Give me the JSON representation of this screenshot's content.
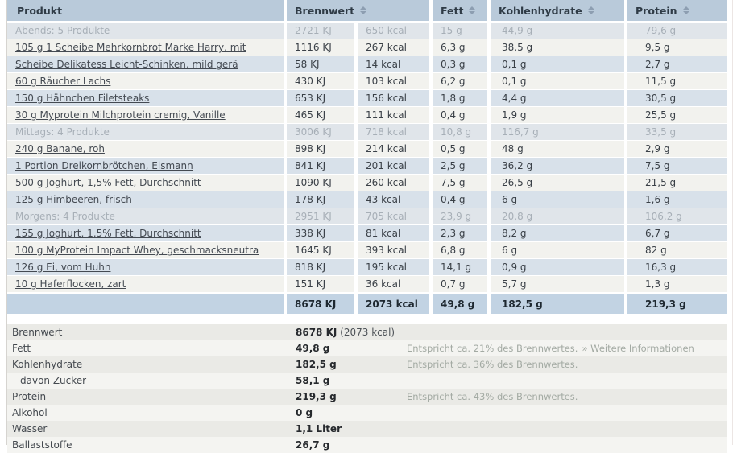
{
  "table": {
    "columns": {
      "produkt": "Produkt",
      "brennwert": "Brennwert",
      "fett": "Fett",
      "kohlenhydrate": "Kohlenhydrate",
      "protein": "Protein"
    },
    "rows": [
      {
        "type": "section",
        "name": "Abends: 5 Produkte",
        "kj": "2721 KJ",
        "kcal": "650 kcal",
        "fett": "15 g",
        "kh": "44,9 g",
        "protein": "79,6 g"
      },
      {
        "type": "item",
        "name": "105 g 1 Scheibe Mehrkornbrot Marke Harry, mit",
        "kj": "1116 KJ",
        "kcal": "267 kcal",
        "fett": "6,3 g",
        "kh": "38,5 g",
        "protein": "9,5 g"
      },
      {
        "type": "item",
        "name": "Scheibe Delikatess Leicht-Schinken, mild gerä",
        "kj": "58 KJ",
        "kcal": "14 kcal",
        "fett": "0,3 g",
        "kh": "0,1 g",
        "protein": "2,7 g"
      },
      {
        "type": "item",
        "name": "60 g Räucher Lachs",
        "kj": "430 KJ",
        "kcal": "103 kcal",
        "fett": "6,2 g",
        "kh": "0,1 g",
        "protein": "11,5 g"
      },
      {
        "type": "item",
        "name": "150 g Hähnchen Filetsteaks",
        "kj": "653 KJ",
        "kcal": "156 kcal",
        "fett": "1,8 g",
        "kh": "4,4 g",
        "protein": "30,5 g"
      },
      {
        "type": "item",
        "name": "30 g Myprotein Milchprotein cremig, Vanille",
        "kj": "465 KJ",
        "kcal": "111 kcal",
        "fett": "0,4 g",
        "kh": "1,9 g",
        "protein": "25,5 g"
      },
      {
        "type": "section",
        "name": "Mittags: 4 Produkte",
        "kj": "3006 KJ",
        "kcal": "718 kcal",
        "fett": "10,8 g",
        "kh": "116,7 g",
        "protein": "33,5 g"
      },
      {
        "type": "item",
        "name": "240 g Banane, roh",
        "kj": "898 KJ",
        "kcal": "214 kcal",
        "fett": "0,5 g",
        "kh": "48 g",
        "protein": "2,9 g"
      },
      {
        "type": "item",
        "name": "1 Portion Dreikornbrötchen, Eismann",
        "kj": "841 KJ",
        "kcal": "201 kcal",
        "fett": "2,5 g",
        "kh": "36,2 g",
        "protein": "7,5 g"
      },
      {
        "type": "item",
        "name": "500 g Joghurt, 1,5% Fett, Durchschnitt",
        "kj": "1090 KJ",
        "kcal": "260 kcal",
        "fett": "7,5 g",
        "kh": "26,5 g",
        "protein": "21,5 g"
      },
      {
        "type": "item",
        "name": "125 g Himbeeren, frisch",
        "kj": "178 KJ",
        "kcal": "43 kcal",
        "fett": "0,4 g",
        "kh": "6 g",
        "protein": "1,6 g"
      },
      {
        "type": "section",
        "name": "Morgens: 4 Produkte",
        "kj": "2951 KJ",
        "kcal": "705 kcal",
        "fett": "23,9 g",
        "kh": "20,8 g",
        "protein": "106,2 g"
      },
      {
        "type": "item",
        "name": "155 g Joghurt, 1,5% Fett, Durchschnitt",
        "kj": "338 KJ",
        "kcal": "81 kcal",
        "fett": "2,3 g",
        "kh": "8,2 g",
        "protein": "6,7 g"
      },
      {
        "type": "item",
        "name": "100 g MyProtein Impact Whey, geschmacksneutra",
        "kj": "1645 KJ",
        "kcal": "393 kcal",
        "fett": "6,8 g",
        "kh": "6 g",
        "protein": "82 g"
      },
      {
        "type": "item",
        "name": "126 g Ei, vom Huhn",
        "kj": "818 KJ",
        "kcal": "195 kcal",
        "fett": "14,1 g",
        "kh": "0,9 g",
        "protein": "16,3 g"
      },
      {
        "type": "item",
        "name": "10 g Haferflocken, zart",
        "kj": "151 KJ",
        "kcal": "36 kcal",
        "fett": "0,7 g",
        "kh": "5,7 g",
        "protein": "1,3 g"
      }
    ],
    "total": {
      "kj": "8678 KJ",
      "kcal": "2073 kcal",
      "fett": "49,8 g",
      "kh": "182,5 g",
      "protein": "219,3 g"
    }
  },
  "summary": {
    "rows": [
      {
        "label": "Brennwert",
        "value": "8678 KJ",
        "suffix": " (2073 kcal)",
        "note": "",
        "link": "",
        "indent": false
      },
      {
        "label": "Fett",
        "value": "49,8 g",
        "suffix": "",
        "note": "Entspricht ca. 21% des Brennwertes.",
        "link": "» Weitere Informationen",
        "indent": false
      },
      {
        "label": "Kohlenhydrate",
        "value": "182,5 g",
        "suffix": "",
        "note": "Entspricht ca. 36% des Brennwertes.",
        "link": "",
        "indent": false
      },
      {
        "label": "davon Zucker",
        "value": "58,1 g",
        "suffix": "",
        "note": "",
        "link": "",
        "indent": true
      },
      {
        "label": "Protein",
        "value": "219,3 g",
        "suffix": "",
        "note": "Entspricht ca. 43% des Brennwertes.",
        "link": "",
        "indent": false
      },
      {
        "label": "Alkohol",
        "value": "0 g",
        "suffix": "",
        "note": "",
        "link": "",
        "indent": false
      },
      {
        "label": "Wasser",
        "value": "1,1 Liter",
        "suffix": "",
        "note": "",
        "link": "",
        "indent": false
      },
      {
        "label": "Ballaststoffe",
        "value": "26,7 g",
        "suffix": "",
        "note": "",
        "link": "",
        "indent": false
      }
    ]
  },
  "icons": {
    "sort": "sort-updown-arrows"
  },
  "colors": {
    "header_bg": "#b9cada",
    "row_blue": "#d8e1ea",
    "row_cream": "#f2f2ee",
    "section_bg": "#e0e5ea",
    "total_bg": "#c2d3e3",
    "summary_dark": "#eaeae6",
    "summary_light": "#f4f4f1",
    "note_text": "#a3aaa3"
  }
}
